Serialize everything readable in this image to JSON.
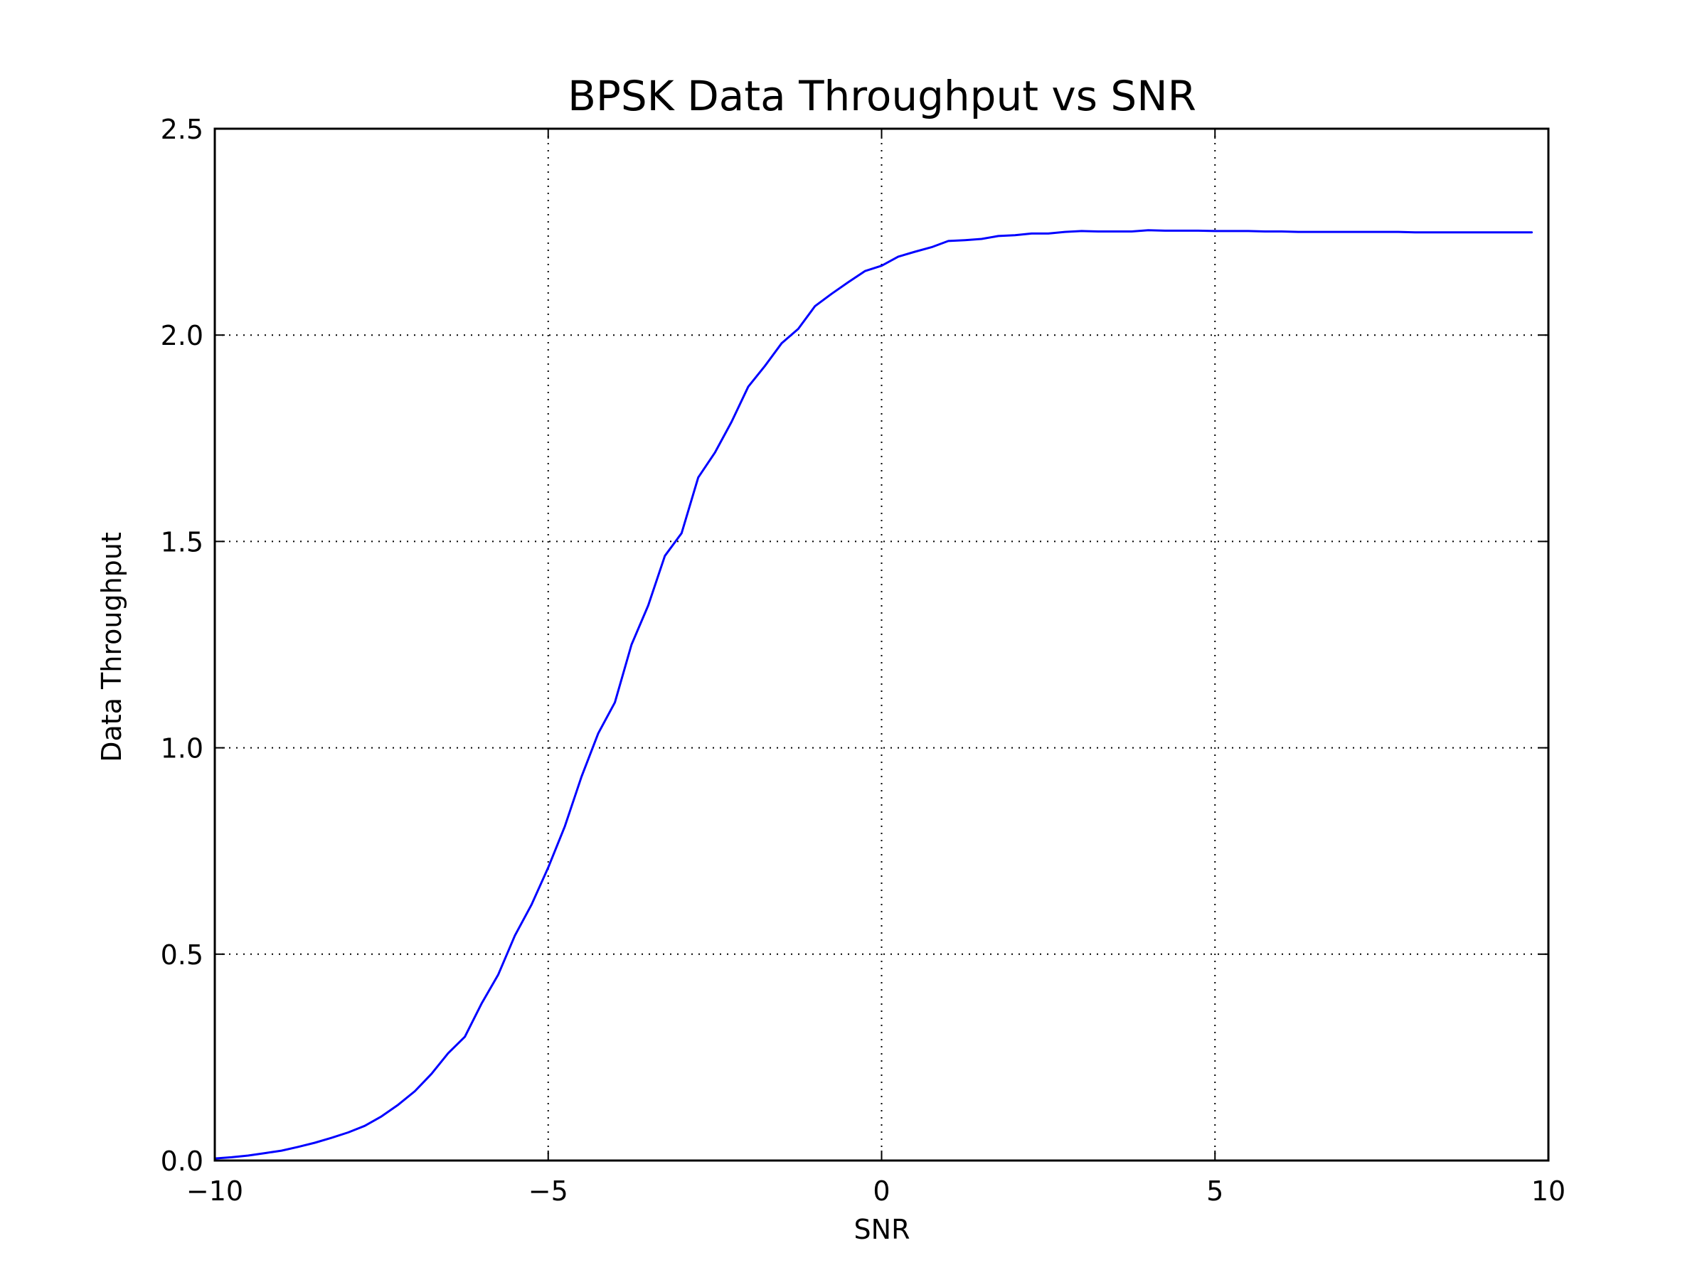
{
  "chart_data": {
    "type": "line",
    "title": "BPSK Data Throughput vs SNR",
    "xlabel": "SNR",
    "ylabel": "Data Throughput",
    "xlim": [
      -10,
      10
    ],
    "ylim": [
      0.0,
      2.5
    ],
    "xticks": [
      -10,
      -5,
      0,
      5,
      10
    ],
    "xtick_labels": [
      "−10",
      "−5",
      "0",
      "5",
      "10"
    ],
    "yticks": [
      0.0,
      0.5,
      1.0,
      1.5,
      2.0,
      2.5
    ],
    "ytick_labels": [
      "0.0",
      "0.5",
      "1.0",
      "1.5",
      "2.0",
      "2.5"
    ],
    "grid": true,
    "grid_style": "dotted",
    "legend": "none",
    "series": [
      {
        "color": "#0000ff",
        "x": [
          -10.0,
          -9.75,
          -9.5,
          -9.25,
          -9.0,
          -8.75,
          -8.5,
          -8.25,
          -8.0,
          -7.75,
          -7.5,
          -7.25,
          -7.0,
          -6.75,
          -6.5,
          -6.25,
          -6.0,
          -5.75,
          -5.5,
          -5.25,
          -5.0,
          -4.75,
          -4.5,
          -4.25,
          -4.0,
          -3.75,
          -3.5,
          -3.25,
          -3.0,
          -2.75,
          -2.5,
          -2.25,
          -2.0,
          -1.75,
          -1.5,
          -1.25,
          -1.0,
          -0.75,
          -0.5,
          -0.25,
          0.0,
          0.25,
          0.5,
          0.75,
          1.0,
          1.25,
          1.5,
          1.75,
          2.0,
          2.25,
          2.5,
          2.75,
          3.0,
          3.25,
          3.5,
          3.75,
          4.0,
          4.25,
          4.5,
          4.75,
          5.0,
          5.25,
          5.5,
          5.75,
          6.0,
          6.25,
          6.5,
          6.75,
          7.0,
          7.25,
          7.5,
          7.75,
          8.0,
          8.25,
          8.5,
          8.75,
          9.0,
          9.25,
          9.5,
          9.75
        ],
        "y": [
          0.005,
          0.008,
          0.012,
          0.018,
          0.024,
          0.033,
          0.043,
          0.055,
          0.068,
          0.084,
          0.107,
          0.135,
          0.168,
          0.21,
          0.26,
          0.3,
          0.38,
          0.45,
          0.545,
          0.62,
          0.71,
          0.81,
          0.93,
          1.035,
          1.11,
          1.25,
          1.345,
          1.465,
          1.52,
          1.655,
          1.715,
          1.79,
          1.875,
          1.925,
          1.98,
          2.015,
          2.07,
          2.1,
          2.128,
          2.155,
          2.168,
          2.19,
          2.202,
          2.213,
          2.228,
          2.23,
          2.233,
          2.24,
          2.242,
          2.246,
          2.246,
          2.25,
          2.252,
          2.251,
          2.251,
          2.251,
          2.254,
          2.253,
          2.253,
          2.253,
          2.252,
          2.252,
          2.252,
          2.251,
          2.251,
          2.25,
          2.25,
          2.25,
          2.25,
          2.25,
          2.25,
          2.25,
          2.249,
          2.249,
          2.249,
          2.249,
          2.249,
          2.249,
          2.249,
          2.249
        ]
      }
    ]
  }
}
